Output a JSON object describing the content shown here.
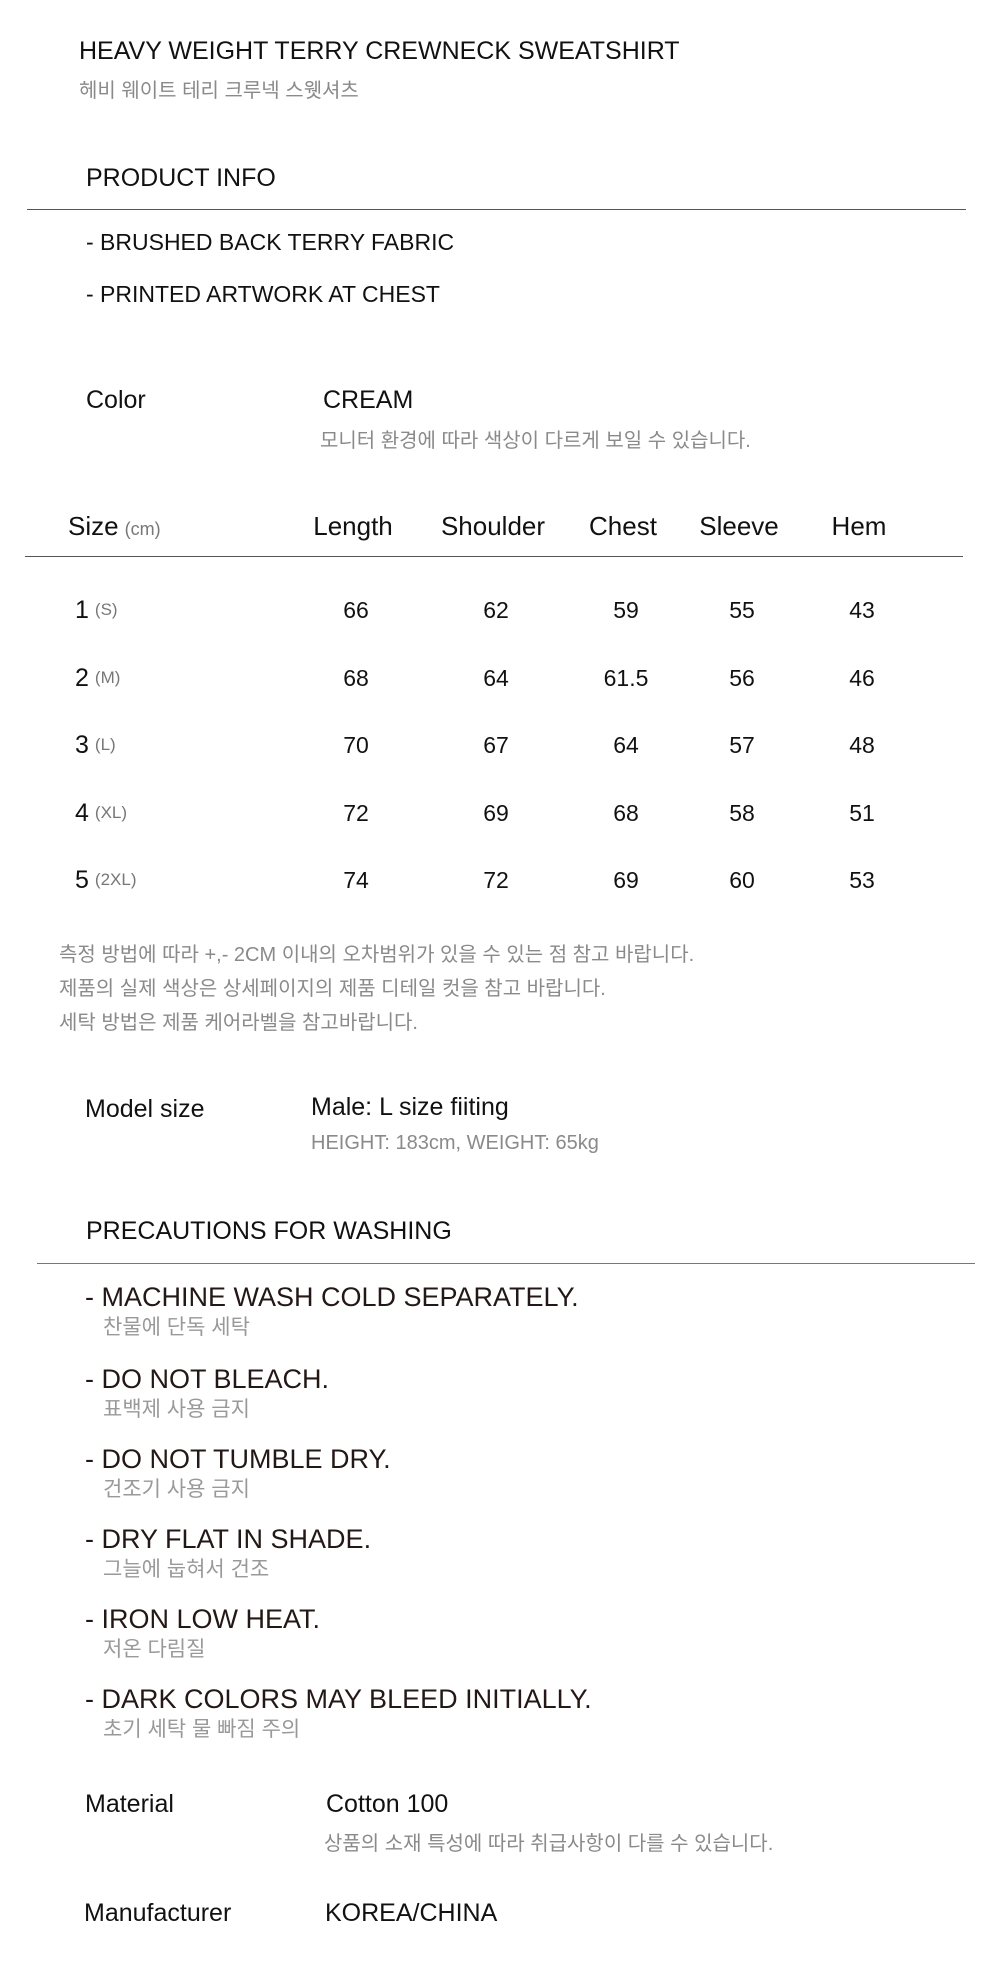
{
  "header": {
    "title": "HEAVY WEIGHT TERRY CREWNECK SWEATSHIRT",
    "subtitle_ko": "헤비 웨이트 테리 크루넥 스웻셔츠"
  },
  "product_info": {
    "heading": "PRODUCT INFO",
    "bullets": [
      "- BRUSHED BACK TERRY FABRIC",
      "- PRINTED ARTWORK AT CHEST"
    ]
  },
  "color": {
    "label": "Color",
    "value": "CREAM",
    "note": "모니터 환경에 따라 색상이 다르게 보일 수 있습니다."
  },
  "size_table": {
    "label": "Size",
    "unit": "(cm)",
    "columns": [
      "Length",
      "Shoulder",
      "Chest",
      "Sleeve",
      "Hem"
    ],
    "rows": [
      {
        "num": "1",
        "size": "(S)",
        "values": [
          "66",
          "62",
          "59",
          "55",
          "43"
        ]
      },
      {
        "num": "2",
        "size": "(M)",
        "values": [
          "68",
          "64",
          "61.5",
          "56",
          "46"
        ]
      },
      {
        "num": "3",
        "size": "(L)",
        "values": [
          "70",
          "67",
          "64",
          "57",
          "48"
        ]
      },
      {
        "num": "4",
        "size": "(XL)",
        "values": [
          "72",
          "69",
          "68",
          "58",
          "51"
        ]
      },
      {
        "num": "5",
        "size": "(2XL)",
        "values": [
          "74",
          "72",
          "69",
          "60",
          "53"
        ]
      }
    ]
  },
  "notes": [
    "측정 방법에 따라 +,- 2CM 이내의 오차범위가 있을 수 있는 점 참고 바랍니다.",
    "제품의 실제 색상은 상세페이지의 제품 디테일 컷을 참고 바랍니다.",
    "세탁 방법은 제품 케어라벨을 참고바랍니다."
  ],
  "model": {
    "label": "Model size",
    "value": "Male:  L size fiiting",
    "detail": "HEIGHT: 183cm, WEIGHT: 65kg"
  },
  "washing": {
    "heading": "PRECAUTIONS FOR WASHING",
    "items": [
      {
        "en": "- MACHINE WASH COLD SEPARATELY.",
        "ko": "찬물에 단독 세탁"
      },
      {
        "en": "- DO NOT BLEACH.",
        "ko": "표백제 사용 금지"
      },
      {
        "en": "- DO NOT TUMBLE DRY.",
        "ko": "건조기 사용 금지"
      },
      {
        "en": "- DRY FLAT IN SHADE.",
        "ko": "그늘에 눕혀서 건조"
      },
      {
        "en": "- IRON LOW HEAT.",
        "ko": "저온 다림질"
      },
      {
        "en": "- DARK COLORS MAY BLEED INITIALLY.",
        "ko": "초기 세탁 물 빠짐 주의"
      }
    ]
  },
  "material": {
    "label": "Material",
    "value": "Cotton 100",
    "note": "상품의 소재 특성에 따라 취급사항이 다를 수 있습니다."
  },
  "manufacturer": {
    "label": "Manufacturer",
    "value": "KOREA/CHINA"
  }
}
